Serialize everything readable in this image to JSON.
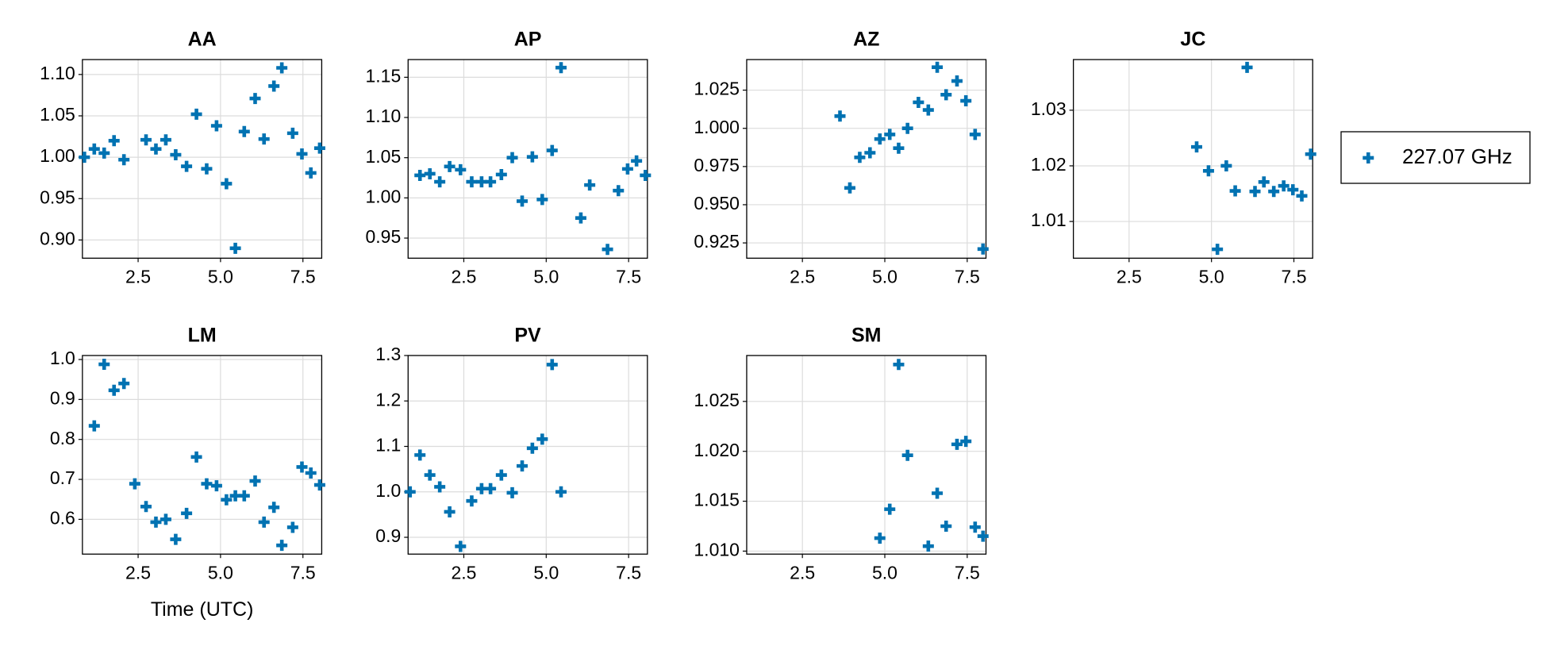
{
  "series_name": "227.07 GHz",
  "color": "#0072b2",
  "chart_data": [
    {
      "type": "scatter",
      "title": "AA",
      "x": [
        0.87,
        1.17,
        1.47,
        1.77,
        2.07,
        2.74,
        3.04,
        3.34,
        3.64,
        3.97,
        4.27,
        4.58,
        4.88,
        5.18,
        5.45,
        5.72,
        6.05,
        6.32,
        6.62,
        6.86,
        7.19,
        7.47,
        7.74,
        8.01
      ],
      "values": [
        1.0,
        1.01,
        1.005,
        1.02,
        0.997,
        1.021,
        1.01,
        1.021,
        1.003,
        0.989,
        1.052,
        0.986,
        1.038,
        0.968,
        0.89,
        1.031,
        1.071,
        1.022,
        1.086,
        1.108,
        1.029,
        1.004,
        0.981,
        1.011
      ],
      "xlim": [
        0.81,
        8.07
      ],
      "ylim": [
        0.878,
        1.118
      ],
      "xticks": [
        2.5,
        {
          "value": 5,
          "label": "5.0"
        },
        7.5
      ],
      "yticks": [
        {
          "value": 0.9,
          "label": "0.90"
        },
        0.95,
        {
          "value": 1.0,
          "label": "1.00"
        },
        1.05,
        {
          "value": 1.1,
          "label": "1.10"
        }
      ],
      "grid": true
    },
    {
      "type": "scatter",
      "title": "AP",
      "x": [
        1.17,
        1.47,
        1.77,
        2.07,
        2.4,
        2.74,
        3.04,
        3.31,
        3.64,
        3.97,
        4.27,
        4.58,
        4.88,
        5.18,
        5.45,
        6.05,
        6.32,
        6.86,
        7.19,
        7.47,
        7.74,
        8.01
      ],
      "values": [
        1.028,
        1.03,
        1.02,
        1.039,
        1.035,
        1.02,
        1.02,
        1.02,
        1.029,
        1.05,
        0.996,
        1.051,
        0.998,
        1.059,
        1.162,
        0.975,
        1.016,
        0.936,
        1.009,
        1.036,
        1.046,
        1.028
      ],
      "xlim": [
        0.81,
        8.07
      ],
      "ylim": [
        0.925,
        1.172
      ],
      "xticks": [
        2.5,
        {
          "value": 5,
          "label": "5.0"
        },
        7.5
      ],
      "yticks": [
        0.95,
        {
          "value": 1.0,
          "label": "1.00"
        },
        1.05,
        {
          "value": 1.1,
          "label": "1.10"
        },
        1.15
      ],
      "grid": true
    },
    {
      "type": "scatter",
      "title": "AZ",
      "x": [
        3.64,
        3.94,
        4.24,
        4.55,
        4.85,
        5.15,
        5.42,
        5.69,
        6.02,
        6.32,
        6.59,
        6.86,
        7.19,
        7.46,
        7.74,
        7.98
      ],
      "values": [
        1.008,
        0.961,
        0.981,
        0.984,
        0.993,
        0.996,
        0.987,
        1.0,
        1.017,
        1.012,
        1.04,
        1.022,
        1.031,
        1.018,
        0.996,
        0.921
      ],
      "xlim": [
        0.81,
        8.07
      ],
      "ylim": [
        0.915,
        1.045
      ],
      "xticks": [
        2.5,
        {
          "value": 5,
          "label": "5.0"
        },
        7.5
      ],
      "yticks": [
        0.925,
        {
          "value": 0.95,
          "label": "0.950"
        },
        0.975,
        {
          "value": 1.0,
          "label": "1.000"
        },
        1.025
      ],
      "grid": true
    },
    {
      "type": "scatter",
      "title": "JC",
      "x": [
        4.55,
        4.91,
        5.18,
        5.45,
        5.72,
        6.08,
        6.32,
        6.59,
        6.89,
        7.19,
        7.47,
        7.74,
        8.01
      ],
      "values": [
        1.0234,
        1.0191,
        1.005,
        1.02,
        1.0155,
        1.0377,
        1.0154,
        1.0171,
        1.0154,
        1.0164,
        1.0157,
        1.0146,
        1.0221
      ],
      "xlim": [
        0.81,
        8.07
      ],
      "ylim": [
        1.0034,
        1.0391
      ],
      "xticks": [
        2.5,
        {
          "value": 5,
          "label": "5.0"
        },
        7.5
      ],
      "yticks": [
        1.01,
        1.02,
        1.03
      ],
      "grid": true
    },
    {
      "type": "scatter",
      "title": "LM",
      "xlabel": "Time (UTC)",
      "x": [
        1.17,
        1.47,
        1.77,
        2.07,
        2.4,
        2.74,
        3.04,
        3.34,
        3.64,
        3.97,
        4.27,
        4.58,
        4.88,
        5.18,
        5.45,
        5.72,
        6.05,
        6.32,
        6.62,
        6.86,
        7.19,
        7.47,
        7.74,
        8.01
      ],
      "values": [
        0.834,
        0.988,
        0.923,
        0.94,
        0.689,
        0.632,
        0.593,
        0.6,
        0.55,
        0.615,
        0.756,
        0.689,
        0.684,
        0.649,
        0.659,
        0.659,
        0.696,
        0.593,
        0.63,
        0.535,
        0.58,
        0.731,
        0.716,
        0.686
      ],
      "xlim": [
        0.81,
        8.07
      ],
      "ylim": [
        0.513,
        1.01
      ],
      "xticks": [
        2.5,
        {
          "value": 5,
          "label": "5.0"
        },
        7.5
      ],
      "yticks": [
        0.6,
        0.7,
        0.8,
        0.9,
        {
          "value": 1.0,
          "label": "1.0"
        }
      ],
      "grid": true
    },
    {
      "type": "scatter",
      "title": "PV",
      "x": [
        0.87,
        1.17,
        1.47,
        1.77,
        2.07,
        2.4,
        2.74,
        3.04,
        3.31,
        3.64,
        3.97,
        4.27,
        4.58,
        4.88,
        5.18,
        5.45
      ],
      "values": [
        1.0,
        1.081,
        1.037,
        1.011,
        0.956,
        0.88,
        0.98,
        1.007,
        1.007,
        1.037,
        0.998,
        1.057,
        1.096,
        1.116,
        1.28,
        1.0
      ],
      "xlim": [
        0.81,
        8.07
      ],
      "ylim": [
        0.863,
        1.3
      ],
      "xticks": [
        2.5,
        {
          "value": 5,
          "label": "5.0"
        },
        7.5
      ],
      "yticks": [
        0.9,
        {
          "value": 1.0,
          "label": "1.0"
        },
        1.1,
        1.2,
        1.3
      ],
      "grid": true
    },
    {
      "type": "scatter",
      "title": "SM",
      "x": [
        4.85,
        5.15,
        5.42,
        5.69,
        6.32,
        6.59,
        6.86,
        7.19,
        7.46,
        7.74,
        7.98
      ],
      "values": [
        1.0113,
        1.0142,
        1.0287,
        1.0196,
        1.0105,
        1.0158,
        1.0125,
        1.0207,
        1.021,
        1.0124,
        1.0115
      ],
      "xlim": [
        0.81,
        8.07
      ],
      "ylim": [
        1.0097,
        1.0296
      ],
      "xticks": [
        2.5,
        {
          "value": 5,
          "label": "5.0"
        },
        7.5
      ],
      "yticks": [
        {
          "value": 1.01,
          "label": "1.010"
        },
        1.015,
        {
          "value": 1.02,
          "label": "1.020"
        },
        1.025
      ],
      "grid": true
    }
  ]
}
